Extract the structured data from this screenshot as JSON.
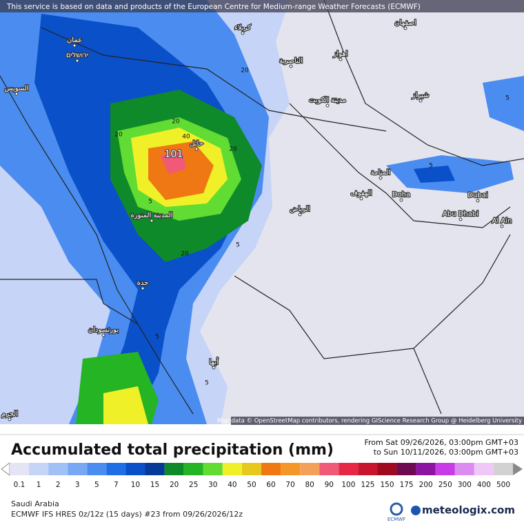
{
  "banner": "This service is based on data and products of the European Centre for Medium-range Weather Forecasts (ECMWF)",
  "map": {
    "places": [
      "عمان",
      "ירושלים",
      "كربلاء",
      "اصفهان",
      "اهواز",
      "الناصرية",
      "مدينة الكويت",
      "شيراز",
      "المنامة",
      "الهفوف",
      "Doha",
      "Dubai",
      "Abu Dhabi",
      "Al Ain",
      "الرياض",
      "حائل",
      "المدينة المنورة",
      "جدة",
      "بورتسودان",
      "أبها",
      "السويس",
      "الجرم"
    ],
    "contour_labels": [
      "101",
      "40",
      "20",
      "20",
      "20",
      "20",
      "20",
      "5",
      "5",
      "5",
      "5",
      "5",
      "5"
    ],
    "attribution": "Map data © OpenStreetMap contributors, rendering GIScience Research Group @ Heidelberg University"
  },
  "title": "Accumulated total precipitation (mm)",
  "period": {
    "from": "From Sat 09/26/2026, 03:00pm GMT+03",
    "to": "to Sun 10/11/2026, 03:00pm GMT+03"
  },
  "legend": [
    {
      "label": "0.1",
      "color": "#e4e4f4"
    },
    {
      "label": "1",
      "color": "#c6d4f8"
    },
    {
      "label": "2",
      "color": "#a0c0f8"
    },
    {
      "label": "3",
      "color": "#78a8f4"
    },
    {
      "label": "5",
      "color": "#4a8cf0"
    },
    {
      "label": "7",
      "color": "#1e6ee6"
    },
    {
      "label": "10",
      "color": "#0a50c8"
    },
    {
      "label": "15",
      "color": "#063a96"
    },
    {
      "label": "20",
      "color": "#0f8a2a"
    },
    {
      "label": "25",
      "color": "#24b424"
    },
    {
      "label": "30",
      "color": "#60dc32"
    },
    {
      "label": "40",
      "color": "#f0f028"
    },
    {
      "label": "50",
      "color": "#e6c81e"
    },
    {
      "label": "60",
      "color": "#f07814"
    },
    {
      "label": "70",
      "color": "#f59628"
    },
    {
      "label": "80",
      "color": "#f5a05a"
    },
    {
      "label": "90",
      "color": "#f05a78"
    },
    {
      "label": "100",
      "color": "#e62846"
    },
    {
      "label": "125",
      "color": "#c8142d"
    },
    {
      "label": "150",
      "color": "#a00a1e"
    },
    {
      "label": "175",
      "color": "#6e0a50"
    },
    {
      "label": "200",
      "color": "#8c14a0"
    },
    {
      "label": "250",
      "color": "#c83ce6"
    },
    {
      "label": "300",
      "color": "#dc8cf0"
    },
    {
      "label": "400",
      "color": "#f0c8f8"
    },
    {
      "label": "500",
      "color": "#d2d2d2"
    }
  ],
  "footer": {
    "region": "Saudi Arabia",
    "model": "ECMWF IFS HRES 0z/12z (15 days) #23 from  09/26/2026/12z",
    "ecmwf": "ECMWF",
    "brand": "meteologix.com"
  }
}
